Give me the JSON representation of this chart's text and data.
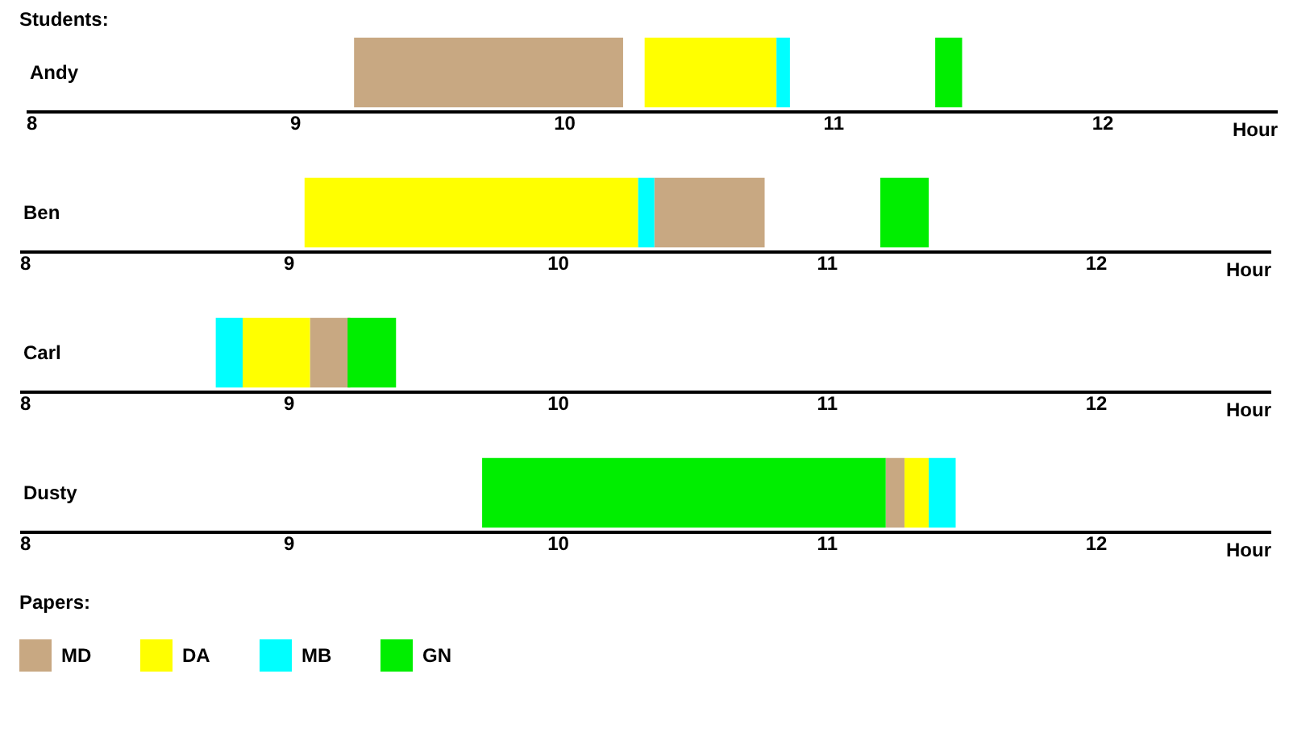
{
  "chart_data": [
    {
      "type": "bar",
      "orientation": "horizontal",
      "title": "Students:",
      "xlabel": "Hour",
      "categories": [
        "Andy"
      ],
      "xlim": [
        8,
        12.65
      ],
      "xticks": [
        8,
        9,
        10,
        11,
        12
      ],
      "series": [
        {
          "color": "#c8a882",
          "values": [
            1.0
          ],
          "base": [
            9.22
          ]
        },
        {
          "color": "#ffff00",
          "values": [
            0.49
          ],
          "base": [
            10.3
          ]
        },
        {
          "color": "#00ffff",
          "values": [
            0.05
          ],
          "base": [
            10.79
          ]
        },
        {
          "color": "#00ee00",
          "values": [
            0.1
          ],
          "base": [
            11.38
          ]
        }
      ]
    },
    {
      "type": "bar",
      "orientation": "horizontal",
      "xlabel": "Hour",
      "categories": [
        "Ben"
      ],
      "xlim": [
        8,
        12.65
      ],
      "xticks": [
        8,
        9,
        10,
        11,
        12
      ],
      "series": [
        {
          "color": "#c8a882",
          "values": [
            0.41
          ],
          "base": [
            10.36
          ]
        },
        {
          "color": "#ffff00",
          "values": [
            1.24
          ],
          "base": [
            9.06
          ]
        },
        {
          "color": "#00ffff",
          "values": [
            0.06
          ],
          "base": [
            10.3
          ]
        },
        {
          "color": "#00ee00",
          "values": [
            0.18
          ],
          "base": [
            11.2
          ]
        }
      ]
    },
    {
      "type": "bar",
      "orientation": "horizontal",
      "xlabel": "Hour",
      "categories": [
        "Carl"
      ],
      "xlim": [
        8,
        12.65
      ],
      "xticks": [
        8,
        9,
        10,
        11,
        12
      ],
      "series": [
        {
          "color": "#c8a882",
          "values": [
            0.15
          ],
          "base": [
            9.08
          ]
        },
        {
          "color": "#ffff00",
          "values": [
            0.25
          ],
          "base": [
            8.83
          ]
        },
        {
          "color": "#00ffff",
          "values": [
            0.1
          ],
          "base": [
            8.73
          ]
        },
        {
          "color": "#00ee00",
          "values": [
            0.18
          ],
          "base": [
            9.22
          ]
        }
      ]
    },
    {
      "type": "bar",
      "orientation": "horizontal",
      "xlabel": "Hour",
      "categories": [
        "Dusty"
      ],
      "xlim": [
        8,
        12.65
      ],
      "xticks": [
        8,
        9,
        10,
        11,
        12
      ],
      "legend": "bottom",
      "legend_title": "Papers:",
      "series": [
        {
          "name": "MD",
          "color": "#c8a882",
          "values": [
            0.07
          ],
          "base": [
            11.22
          ]
        },
        {
          "name": "DA",
          "color": "#ffff00",
          "values": [
            0.09
          ],
          "base": [
            11.29
          ]
        },
        {
          "name": "MB",
          "color": "#00ffff",
          "values": [
            0.1
          ],
          "base": [
            11.38
          ]
        },
        {
          "name": "GN",
          "color": "#00ee00",
          "values": [
            1.5
          ],
          "base": [
            9.72
          ]
        }
      ]
    }
  ]
}
